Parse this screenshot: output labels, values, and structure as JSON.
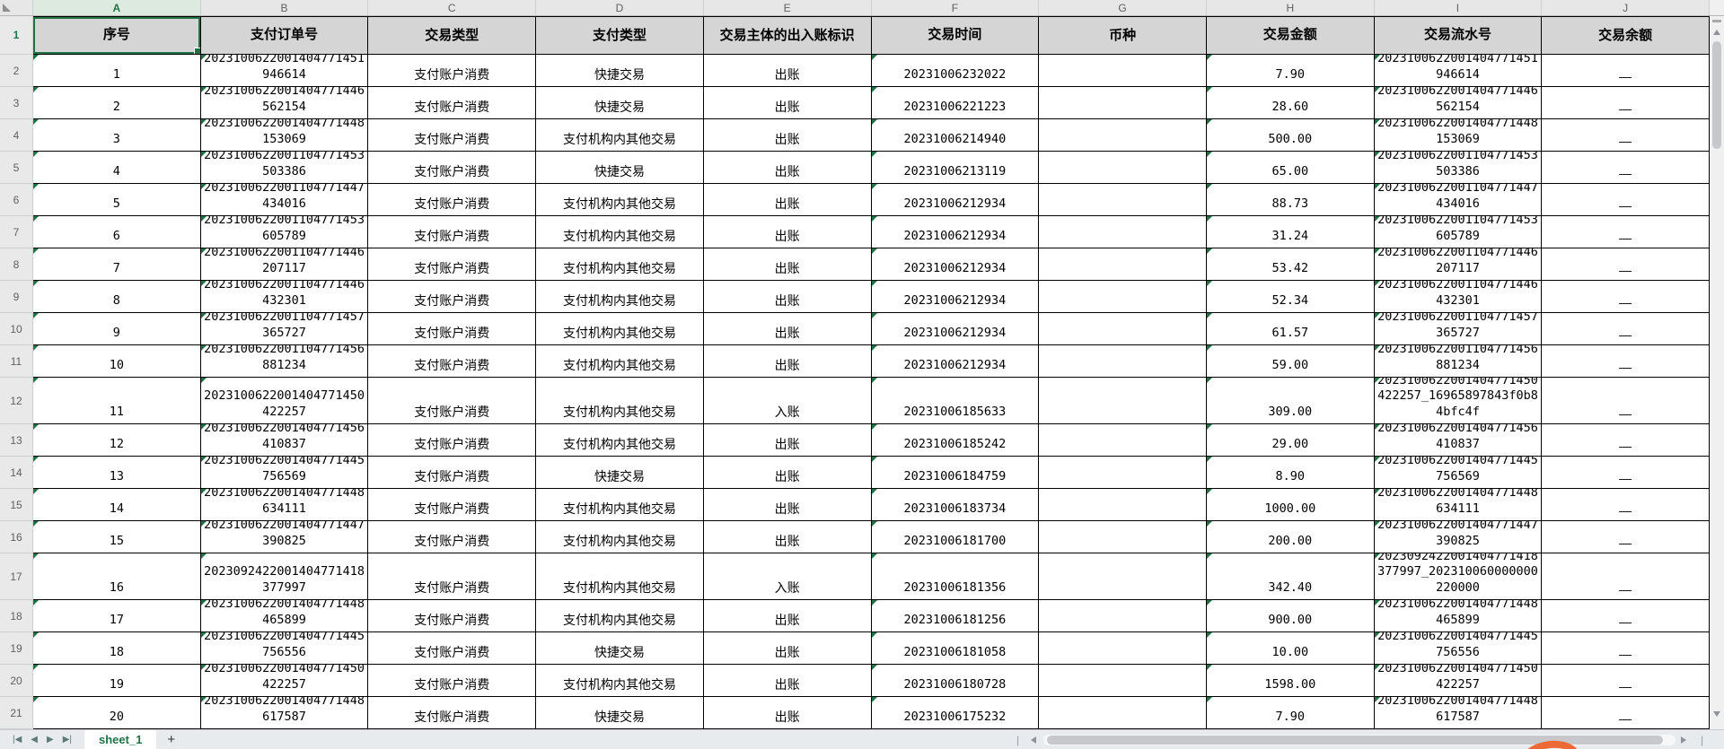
{
  "sheet": {
    "name_tab": "sheet_1",
    "add_tab_label": "+",
    "nav_icons": [
      "|◀",
      "◀",
      "▶",
      "▶|"
    ],
    "column_letters": [
      "A",
      "B",
      "C",
      "D",
      "E",
      "F",
      "G",
      "H",
      "I",
      "J"
    ],
    "selected_cell": "A1",
    "header_row": [
      "序号",
      "支付订单号",
      "交易类型",
      "支付类型",
      "交易主体的出入账标识",
      "交易时间",
      "币种",
      "交易金额",
      "交易流水号",
      "交易余额"
    ],
    "rows": [
      {
        "row": 2,
        "seq": "1",
        "order": "2023100622001404771451\n946614",
        "txn_type": "支付账户消费",
        "pay_type": "快捷交易",
        "flag": "出账",
        "time": "20231006232022",
        "currency": "",
        "amount": "7.90",
        "flow": "2023100622001404771451\n946614",
        "balance": "—",
        "tall": false
      },
      {
        "row": 3,
        "seq": "2",
        "order": "2023100622001404771446\n562154",
        "txn_type": "支付账户消费",
        "pay_type": "快捷交易",
        "flag": "出账",
        "time": "20231006221223",
        "currency": "",
        "amount": "28.60",
        "flow": "2023100622001404771446\n562154",
        "balance": "—",
        "tall": false
      },
      {
        "row": 4,
        "seq": "3",
        "order": "2023100622001404771448\n153069",
        "txn_type": "支付账户消费",
        "pay_type": "支付机构内其他交易",
        "flag": "出账",
        "time": "20231006214940",
        "currency": "",
        "amount": "500.00",
        "flow": "2023100622001404771448\n153069",
        "balance": "—",
        "tall": false
      },
      {
        "row": 5,
        "seq": "4",
        "order": "2023100622001104771453\n503386",
        "txn_type": "支付账户消费",
        "pay_type": "快捷交易",
        "flag": "出账",
        "time": "20231006213119",
        "currency": "",
        "amount": "65.00",
        "flow": "2023100622001104771453\n503386",
        "balance": "—",
        "tall": false
      },
      {
        "row": 6,
        "seq": "5",
        "order": "2023100622001104771447\n434016",
        "txn_type": "支付账户消费",
        "pay_type": "支付机构内其他交易",
        "flag": "出账",
        "time": "20231006212934",
        "currency": "",
        "amount": "88.73",
        "flow": "2023100622001104771447\n434016",
        "balance": "—",
        "tall": false
      },
      {
        "row": 7,
        "seq": "6",
        "order": "2023100622001104771453\n605789",
        "txn_type": "支付账户消费",
        "pay_type": "支付机构内其他交易",
        "flag": "出账",
        "time": "20231006212934",
        "currency": "",
        "amount": "31.24",
        "flow": "2023100622001104771453\n605789",
        "balance": "—",
        "tall": false
      },
      {
        "row": 8,
        "seq": "7",
        "order": "2023100622001104771446\n207117",
        "txn_type": "支付账户消费",
        "pay_type": "支付机构内其他交易",
        "flag": "出账",
        "time": "20231006212934",
        "currency": "",
        "amount": "53.42",
        "flow": "2023100622001104771446\n207117",
        "balance": "—",
        "tall": false
      },
      {
        "row": 9,
        "seq": "8",
        "order": "2023100622001104771446\n432301",
        "txn_type": "支付账户消费",
        "pay_type": "支付机构内其他交易",
        "flag": "出账",
        "time": "20231006212934",
        "currency": "",
        "amount": "52.34",
        "flow": "2023100622001104771446\n432301",
        "balance": "—",
        "tall": false
      },
      {
        "row": 10,
        "seq": "9",
        "order": "2023100622001104771457\n365727",
        "txn_type": "支付账户消费",
        "pay_type": "支付机构内其他交易",
        "flag": "出账",
        "time": "20231006212934",
        "currency": "",
        "amount": "61.57",
        "flow": "2023100622001104771457\n365727",
        "balance": "—",
        "tall": false
      },
      {
        "row": 11,
        "seq": "10",
        "order": "2023100622001104771456\n881234",
        "txn_type": "支付账户消费",
        "pay_type": "支付机构内其他交易",
        "flag": "出账",
        "time": "20231006212934",
        "currency": "",
        "amount": "59.00",
        "flow": "2023100622001104771456\n881234",
        "balance": "—",
        "tall": false
      },
      {
        "row": 12,
        "seq": "11",
        "order": "2023100622001404771450\n422257",
        "txn_type": "支付账户消费",
        "pay_type": "支付机构内其他交易",
        "flag": "入账",
        "time": "20231006185633",
        "currency": "",
        "amount": "309.00",
        "flow": "2023100622001404771450\n422257_16965897843f0b8\n4bfc4f",
        "balance": "—",
        "tall": true
      },
      {
        "row": 13,
        "seq": "12",
        "order": "2023100622001404771456\n410837",
        "txn_type": "支付账户消费",
        "pay_type": "支付机构内其他交易",
        "flag": "出账",
        "time": "20231006185242",
        "currency": "",
        "amount": "29.00",
        "flow": "2023100622001404771456\n410837",
        "balance": "—",
        "tall": false
      },
      {
        "row": 14,
        "seq": "13",
        "order": "2023100622001404771445\n756569",
        "txn_type": "支付账户消费",
        "pay_type": "快捷交易",
        "flag": "出账",
        "time": "20231006184759",
        "currency": "",
        "amount": "8.90",
        "flow": "2023100622001404771445\n756569",
        "balance": "—",
        "tall": false
      },
      {
        "row": 15,
        "seq": "14",
        "order": "2023100622001404771448\n634111",
        "txn_type": "支付账户消费",
        "pay_type": "支付机构内其他交易",
        "flag": "出账",
        "time": "20231006183734",
        "currency": "",
        "amount": "1000.00",
        "flow": "2023100622001404771448\n634111",
        "balance": "—",
        "tall": false
      },
      {
        "row": 16,
        "seq": "15",
        "order": "2023100622001404771447\n390825",
        "txn_type": "支付账户消费",
        "pay_type": "支付机构内其他交易",
        "flag": "出账",
        "time": "20231006181700",
        "currency": "",
        "amount": "200.00",
        "flow": "2023100622001404771447\n390825",
        "balance": "—",
        "tall": false
      },
      {
        "row": 17,
        "seq": "16",
        "order": "2023092422001404771418\n377997",
        "txn_type": "支付账户消费",
        "pay_type": "支付机构内其他交易",
        "flag": "入账",
        "time": "20231006181356",
        "currency": "",
        "amount": "342.40",
        "flow": "2023092422001404771418\n377997_202310060000000\n220000",
        "balance": "—",
        "tall": true
      },
      {
        "row": 18,
        "seq": "17",
        "order": "2023100622001404771448\n465899",
        "txn_type": "支付账户消费",
        "pay_type": "支付机构内其他交易",
        "flag": "出账",
        "time": "20231006181256",
        "currency": "",
        "amount": "900.00",
        "flow": "2023100622001404771448\n465899",
        "balance": "—",
        "tall": false
      },
      {
        "row": 19,
        "seq": "18",
        "order": "2023100622001404771445\n756556",
        "txn_type": "支付账户消费",
        "pay_type": "快捷交易",
        "flag": "出账",
        "time": "20231006181058",
        "currency": "",
        "amount": "10.00",
        "flow": "2023100622001404771445\n756556",
        "balance": "—",
        "tall": false
      },
      {
        "row": 20,
        "seq": "19",
        "order": "2023100622001404771450\n422257",
        "txn_type": "支付账户消费",
        "pay_type": "支付机构内其他交易",
        "flag": "出账",
        "time": "20231006180728",
        "currency": "",
        "amount": "1598.00",
        "flow": "2023100622001404771450\n422257",
        "balance": "—",
        "tall": false
      },
      {
        "row": 21,
        "seq": "20",
        "order": "2023100622001404771448\n617587",
        "txn_type": "支付账户消费",
        "pay_type": "快捷交易",
        "flag": "出账",
        "time": "20231006175232",
        "currency": "",
        "amount": "7.90",
        "flow": "2023100622001404771448\n617587",
        "balance": "—",
        "tall": false
      }
    ],
    "colors": {
      "accent_green": "#217346",
      "header_fill": "#d5d5d5",
      "annotation_orange": "#ec6a35"
    }
  }
}
